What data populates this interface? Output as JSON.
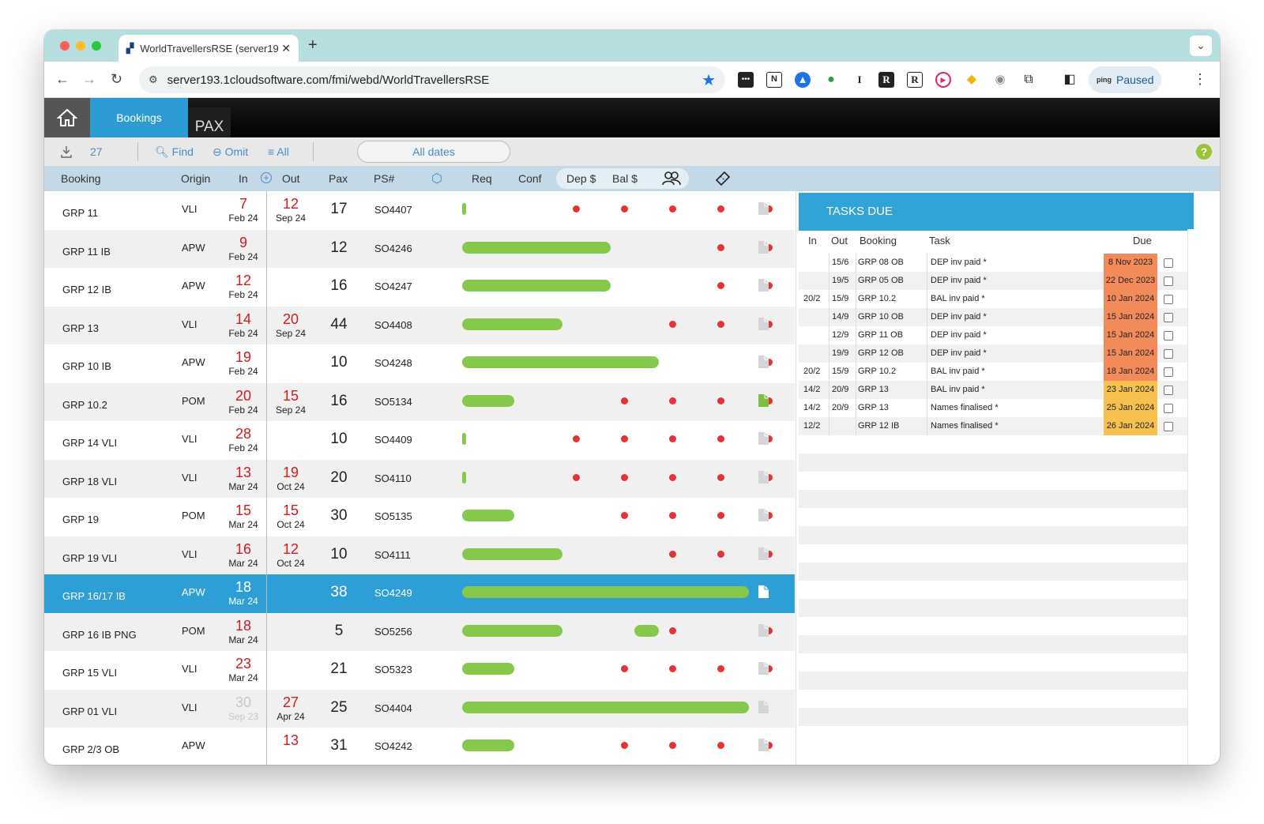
{
  "browser": {
    "tab_title": "WorldTravellersRSE (server19",
    "url": "server193.1cloudsoftware.com/fmi/webd/WorldTravellersRSE",
    "profile_label": "Paused",
    "profile_avatar": "ping"
  },
  "nav": {
    "bookings": "Bookings",
    "pax": "PAX"
  },
  "filter": {
    "count": "27",
    "find": "Find",
    "omit": "Omit",
    "all": "All",
    "dates": "All dates"
  },
  "columns": {
    "booking": "Booking",
    "origin": "Origin",
    "in": "In",
    "out": "Out",
    "pax": "Pax",
    "ps": "PS#",
    "req": "Req",
    "conf": "Conf",
    "dep": "Dep $",
    "bal": "Bal $"
  },
  "rows": [
    {
      "booking": "GRP 11",
      "origin": "VLI",
      "in_day": "7",
      "in_mon": "Feb 24",
      "out_day": "12",
      "out_mon": "Sep 24",
      "pax": "17",
      "ps": "SO4407",
      "progress": [
        "bar",
        "dot",
        "dot",
        "dot",
        "dot",
        "dot"
      ],
      "doc": "grey"
    },
    {
      "booking": "GRP 11 IB",
      "origin": "APW",
      "in_day": "9",
      "in_mon": "Feb 24",
      "out_day": "",
      "out_mon": "",
      "pax": "12",
      "ps": "SO4246",
      "progress": [
        "bar",
        "bar",
        "bar",
        "bar",
        "dot",
        "dot"
      ],
      "doc": "grey"
    },
    {
      "booking": "GRP 12 IB",
      "origin": "APW",
      "in_day": "12",
      "in_mon": "Feb 24",
      "out_day": "",
      "out_mon": "",
      "pax": "16",
      "ps": "SO4247",
      "progress": [
        "bar",
        "bar",
        "bar",
        "bar",
        "dot",
        "dot"
      ],
      "doc": "grey"
    },
    {
      "booking": "GRP 13",
      "origin": "VLI",
      "in_day": "14",
      "in_mon": "Feb 24",
      "out_day": "20",
      "out_mon": "Sep 24",
      "pax": "44",
      "ps": "SO4408",
      "progress": [
        "bar",
        "bar",
        "bar",
        "dot",
        "dot",
        "dot"
      ],
      "doc": "grey"
    },
    {
      "booking": "GRP 10 IB",
      "origin": "APW",
      "in_day": "19",
      "in_mon": "Feb 24",
      "out_day": "",
      "out_mon": "",
      "pax": "10",
      "ps": "SO4248",
      "progress": [
        "bar",
        "bar",
        "bar",
        "bar",
        "bar",
        "dot"
      ],
      "doc": "grey"
    },
    {
      "booking": "GRP 10.2",
      "origin": "POM",
      "in_day": "20",
      "in_mon": "Feb 24",
      "out_day": "15",
      "out_mon": "Sep 24",
      "pax": "16",
      "ps": "SO5134",
      "progress": [
        "bar",
        "bar",
        "dot",
        "dot",
        "dot",
        "dot"
      ],
      "doc": "green"
    },
    {
      "booking": "GRP 14 VLI",
      "origin": "VLI",
      "in_day": "28",
      "in_mon": "Feb 24",
      "out_day": "",
      "out_mon": "",
      "pax": "10",
      "ps": "SO4409",
      "progress": [
        "bar",
        "dot",
        "dot",
        "dot",
        "dot",
        "dot"
      ],
      "doc": "grey"
    },
    {
      "booking": "GRP 18 VLI",
      "origin": "VLI",
      "in_day": "13",
      "in_mon": "Mar 24",
      "out_day": "19",
      "out_mon": "Oct 24",
      "pax": "20",
      "ps": "SO4110",
      "progress": [
        "bar",
        "dot",
        "dot",
        "dot",
        "dot",
        "dot"
      ],
      "doc": "grey"
    },
    {
      "booking": "GRP 19",
      "origin": "POM",
      "in_day": "15",
      "in_mon": "Mar 24",
      "out_day": "15",
      "out_mon": "Oct 24",
      "pax": "30",
      "ps": "SO5135",
      "progress": [
        "bar",
        "bar",
        "dot",
        "dot",
        "dot",
        "dot"
      ],
      "doc": "grey"
    },
    {
      "booking": "GRP 19 VLI",
      "origin": "VLI",
      "in_day": "16",
      "in_mon": "Mar 24",
      "out_day": "12",
      "out_mon": "Oct 24",
      "pax": "10",
      "ps": "SO4111",
      "progress": [
        "bar",
        "bar",
        "bar",
        "dot",
        "dot",
        "dot"
      ],
      "doc": "grey"
    },
    {
      "booking": "GRP 16/17 IB",
      "origin": "APW",
      "in_day": "18",
      "in_mon": "Mar 24",
      "out_day": "",
      "out_mon": "",
      "pax": "38",
      "ps": "SO4249",
      "progress": [
        "bar",
        "bar",
        "bar",
        "bar",
        "bar",
        "bar"
      ],
      "doc": "white",
      "selected": true
    },
    {
      "booking": "GRP 16 IB PNG",
      "origin": "POM",
      "in_day": "18",
      "in_mon": "Mar 24",
      "out_day": "",
      "out_mon": "",
      "pax": "5",
      "ps": "SO5256",
      "progress": [
        "bar",
        "bar",
        "bar",
        "dot",
        "bar",
        "dot"
      ],
      "doc": "grey"
    },
    {
      "booking": "GRP 15 VLI",
      "origin": "VLI",
      "in_day": "23",
      "in_mon": "Mar 24",
      "out_day": "",
      "out_mon": "",
      "pax": "21",
      "ps": "SO5323",
      "progress": [
        "bar",
        "bar",
        "dot",
        "dot",
        "dot",
        "dot"
      ],
      "doc": "grey"
    },
    {
      "booking": "GRP 01 VLI",
      "origin": "VLI",
      "in_day": "30",
      "in_mon": "Sep 23",
      "out_day": "27",
      "out_mon": "Apr 24",
      "pax": "25",
      "ps": "SO4404",
      "progress": [
        "bar",
        "bar",
        "bar",
        "bar",
        "bar",
        "bar"
      ],
      "doc": "grey",
      "in_muted": true
    },
    {
      "booking": "GRP 2/3 OB",
      "origin": "APW",
      "in_day": "",
      "in_mon": "",
      "out_day": "13",
      "out_mon": "",
      "pax": "31",
      "ps": "SO4242",
      "progress": [
        "bar",
        "bar",
        "dot",
        "dot",
        "dot",
        "dot"
      ],
      "doc": "grey"
    }
  ],
  "tasks": {
    "title": "TASKS DUE",
    "headers": {
      "in": "In",
      "out": "Out",
      "booking": "Booking",
      "task": "Task",
      "due": "Due"
    },
    "items": [
      {
        "in": "",
        "out": "15/6",
        "booking": "GRP 08 OB",
        "task": "DEP inv paid *",
        "due": "8 Nov 2023",
        "color": "#f28a5a"
      },
      {
        "in": "",
        "out": "19/5",
        "booking": "GRP 05 OB",
        "task": "DEP inv paid *",
        "due": "22 Dec 2023",
        "color": "#f28a5a"
      },
      {
        "in": "20/2",
        "out": "15/9",
        "booking": "GRP 10.2",
        "task": "BAL inv paid *",
        "due": "10 Jan 2024",
        "color": "#f28a5a"
      },
      {
        "in": "",
        "out": "14/9",
        "booking": "GRP 10 OB",
        "task": "DEP inv paid *",
        "due": "15 Jan 2024",
        "color": "#f28a5a"
      },
      {
        "in": "",
        "out": "12/9",
        "booking": "GRP 11 OB",
        "task": "DEP inv paid *",
        "due": "15 Jan 2024",
        "color": "#f28a5a"
      },
      {
        "in": "",
        "out": "19/9",
        "booking": "GRP 12 OB",
        "task": "DEP inv paid *",
        "due": "15 Jan 2024",
        "color": "#f28a5a"
      },
      {
        "in": "20/2",
        "out": "15/9",
        "booking": "GRP 10.2",
        "task": "BAL inv paid *",
        "due": "18 Jan 2024",
        "color": "#f28a5a"
      },
      {
        "in": "14/2",
        "out": "20/9",
        "booking": "GRP 13",
        "task": "BAL inv paid *",
        "due": "23 Jan 2024",
        "color": "#f7c150"
      },
      {
        "in": "14/2",
        "out": "20/9",
        "booking": "GRP 13",
        "task": "Names finalised *",
        "due": "25 Jan 2024",
        "color": "#f7c150"
      },
      {
        "in": "12/2",
        "out": "",
        "booking": "GRP 12 IB",
        "task": "Names finalised *",
        "due": "26 Jan 2024",
        "color": "#f7c150"
      }
    ]
  }
}
